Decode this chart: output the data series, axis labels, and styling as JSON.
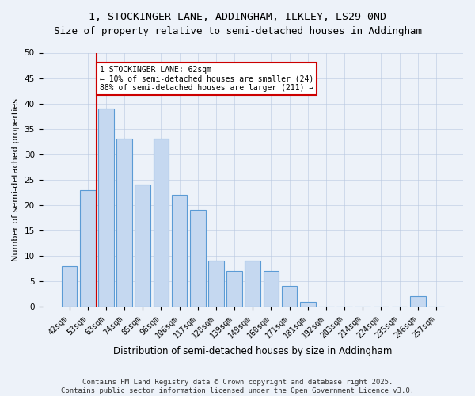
{
  "title": "1, STOCKINGER LANE, ADDINGHAM, ILKLEY, LS29 0ND",
  "subtitle": "Size of property relative to semi-detached houses in Addingham",
  "xlabel": "Distribution of semi-detached houses by size in Addingham",
  "ylabel": "Number of semi-detached properties",
  "bar_labels": [
    "42sqm",
    "53sqm",
    "63sqm",
    "74sqm",
    "85sqm",
    "96sqm",
    "106sqm",
    "117sqm",
    "128sqm",
    "139sqm",
    "149sqm",
    "160sqm",
    "171sqm",
    "181sqm",
    "192sqm",
    "203sqm",
    "214sqm",
    "224sqm",
    "235sqm",
    "246sqm",
    "257sqm"
  ],
  "bar_values": [
    8,
    23,
    39,
    33,
    24,
    33,
    22,
    19,
    9,
    7,
    9,
    7,
    4,
    1,
    0,
    0,
    0,
    0,
    0,
    2,
    0
  ],
  "bar_color": "#c5d8f0",
  "bar_edge_color": "#5b9bd5",
  "vline_position": 1.5,
  "vline_color": "#cc0000",
  "annotation_text": "1 STOCKINGER LANE: 62sqm\n← 10% of semi-detached houses are smaller (24)\n88% of semi-detached houses are larger (211) →",
  "annotation_box_color": "#ffffff",
  "annotation_box_edge": "#cc0000",
  "ylim": [
    0,
    50
  ],
  "yticks": [
    0,
    5,
    10,
    15,
    20,
    25,
    30,
    35,
    40,
    45,
    50
  ],
  "footer_line1": "Contains HM Land Registry data © Crown copyright and database right 2025.",
  "footer_line2": "Contains public sector information licensed under the Open Government Licence v3.0.",
  "bg_color": "#edf2f9",
  "title_fontsize": 9.5,
  "subtitle_fontsize": 9,
  "ylabel_fontsize": 8,
  "xlabel_fontsize": 8.5,
  "tick_fontsize": 7,
  "annotation_fontsize": 7,
  "footer_fontsize": 6.5
}
